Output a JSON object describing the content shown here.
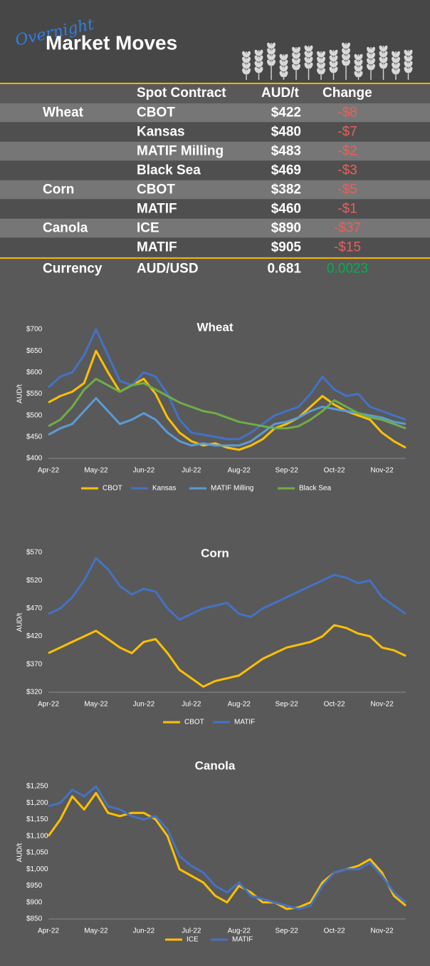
{
  "header": {
    "overlay": "Overnight",
    "title": "Market Moves"
  },
  "table": {
    "columns": [
      "Spot Contract",
      "AUD/t",
      "Change"
    ],
    "groups": [
      {
        "name": "Wheat",
        "rows": [
          [
            "CBOT",
            "$422",
            "-$8"
          ],
          [
            "Kansas",
            "$480",
            "-$7"
          ],
          [
            "MATIF Milling",
            "$483",
            "-$2"
          ],
          [
            "Black Sea",
            "$469",
            "-$3"
          ]
        ]
      },
      {
        "name": "Corn",
        "rows": [
          [
            "CBOT",
            "$382",
            "-$5"
          ],
          [
            "MATIF",
            "$460",
            "-$1"
          ]
        ]
      },
      {
        "name": "Canola",
        "rows": [
          [
            "ICE",
            "$890",
            "-$37"
          ],
          [
            "MATIF",
            "$905",
            "-$15"
          ]
        ]
      },
      {
        "name": "Currency",
        "rows": [
          [
            "AUD/USD",
            "0.681",
            "0.0023"
          ]
        ]
      }
    ]
  },
  "chart_data": [
    {
      "type": "line",
      "title": "Wheat",
      "y_label": "AUD/t",
      "categories": [
        "Apr-22",
        null,
        null,
        null,
        "May-22",
        null,
        null,
        null,
        "Jun-22",
        null,
        null,
        null,
        "Jul-22",
        null,
        null,
        null,
        "Aug-22",
        null,
        null,
        null,
        "Sep-22",
        null,
        null,
        null,
        "Oct-22",
        null,
        null,
        null,
        "Nov-22",
        null,
        null
      ],
      "ylim": [
        400,
        700
      ],
      "yticks": [
        {
          "value": 400,
          "label": "$400"
        },
        {
          "value": 450,
          "label": "$450"
        },
        {
          "value": 500,
          "label": "$500"
        },
        {
          "value": 550,
          "label": "$550"
        },
        {
          "value": 600,
          "label": "$600"
        },
        {
          "value": 650,
          "label": "$650"
        },
        {
          "value": 700,
          "label": "$700"
        }
      ],
      "series": [
        {
          "name": "CBOT",
          "color": "#ffc000",
          "values": [
            530,
            545,
            555,
            575,
            650,
            600,
            555,
            570,
            585,
            550,
            495,
            460,
            440,
            430,
            435,
            425,
            420,
            430,
            445,
            470,
            480,
            495,
            520,
            545,
            525,
            510,
            500,
            490,
            460,
            440,
            425
          ]
        },
        {
          "name": "Kansas",
          "color": "#4472c4",
          "values": [
            565,
            590,
            600,
            640,
            700,
            640,
            580,
            570,
            600,
            590,
            550,
            490,
            460,
            455,
            450,
            445,
            445,
            460,
            480,
            500,
            510,
            520,
            550,
            590,
            560,
            545,
            550,
            520,
            510,
            500,
            490
          ]
        },
        {
          "name": "MATIF Milling",
          "color": "#5b9bd5",
          "values": [
            455,
            470,
            480,
            510,
            540,
            510,
            480,
            490,
            505,
            490,
            460,
            440,
            430,
            435,
            430,
            430,
            430,
            440,
            460,
            480,
            485,
            495,
            510,
            520,
            515,
            510,
            505,
            500,
            495,
            485,
            480
          ]
        },
        {
          "name": "Black Sea",
          "color": "#70ad47",
          "values": [
            475,
            490,
            520,
            560,
            585,
            570,
            555,
            570,
            575,
            560,
            545,
            530,
            520,
            510,
            505,
            495,
            485,
            480,
            475,
            470,
            470,
            475,
            490,
            510,
            535,
            520,
            505,
            495,
            490,
            480,
            470
          ]
        }
      ]
    },
    {
      "type": "line",
      "title": "Corn",
      "y_label": "AUD/t",
      "categories": [
        "Apr-22",
        null,
        null,
        null,
        "May-22",
        null,
        null,
        null,
        "Jun-22",
        null,
        null,
        null,
        "Jul-22",
        null,
        null,
        null,
        "Aug-22",
        null,
        null,
        null,
        "Sep-22",
        null,
        null,
        null,
        "Oct-22",
        null,
        null,
        null,
        "Nov-22",
        null,
        null
      ],
      "ylim": [
        320,
        570
      ],
      "yticks": [
        {
          "value": 320,
          "label": "$320"
        },
        {
          "value": 370,
          "label": "$370"
        },
        {
          "value": 420,
          "label": "$420"
        },
        {
          "value": 470,
          "label": "$470"
        },
        {
          "value": 520,
          "label": "$520"
        },
        {
          "value": 570,
          "label": "$570"
        }
      ],
      "series": [
        {
          "name": "CBOT",
          "color": "#ffc000",
          "values": [
            390,
            400,
            410,
            420,
            430,
            415,
            400,
            390,
            410,
            415,
            390,
            360,
            345,
            330,
            340,
            345,
            350,
            365,
            380,
            390,
            400,
            405,
            410,
            420,
            440,
            435,
            425,
            420,
            400,
            395,
            385
          ]
        },
        {
          "name": "MATIF",
          "color": "#4472c4",
          "values": [
            460,
            470,
            490,
            520,
            560,
            540,
            510,
            495,
            505,
            500,
            470,
            450,
            460,
            470,
            475,
            480,
            460,
            455,
            470,
            480,
            490,
            500,
            510,
            520,
            530,
            525,
            515,
            520,
            490,
            475,
            460
          ]
        }
      ]
    },
    {
      "type": "line",
      "title": "Canola",
      "y_label": "AUD/t",
      "categories": [
        "Apr-22",
        null,
        null,
        null,
        "May-22",
        null,
        null,
        null,
        "Jun-22",
        null,
        null,
        null,
        "Jul-22",
        null,
        null,
        null,
        "Aug-22",
        null,
        null,
        null,
        "Sep-22",
        null,
        null,
        null,
        "Oct-22",
        null,
        null,
        null,
        "Nov-22",
        null,
        null
      ],
      "ylim": [
        850,
        1250
      ],
      "yticks": [
        {
          "value": 850,
          "label": "$850"
        },
        {
          "value": 900,
          "label": "$900"
        },
        {
          "value": 950,
          "label": "$950"
        },
        {
          "value": 1000,
          "label": "$1,000"
        },
        {
          "value": 1050,
          "label": "$1,050"
        },
        {
          "value": 1100,
          "label": "$1,100"
        },
        {
          "value": 1150,
          "label": "$1,150"
        },
        {
          "value": 1200,
          "label": "$1,200"
        },
        {
          "value": 1250,
          "label": "$1,250"
        }
      ],
      "series": [
        {
          "name": "ICE",
          "color": "#ffc000",
          "values": [
            1100,
            1150,
            1220,
            1180,
            1230,
            1170,
            1160,
            1170,
            1170,
            1150,
            1100,
            1000,
            980,
            960,
            920,
            900,
            950,
            930,
            900,
            900,
            880,
            885,
            900,
            960,
            990,
            1000,
            1010,
            1030,
            990,
            920,
            890
          ]
        },
        {
          "name": "MATIF",
          "color": "#4472c4",
          "values": [
            1190,
            1200,
            1240,
            1220,
            1250,
            1190,
            1180,
            1160,
            1150,
            1160,
            1120,
            1040,
            1010,
            990,
            950,
            930,
            960,
            920,
            910,
            900,
            890,
            880,
            890,
            950,
            990,
            1000,
            1000,
            1020,
            980,
            930,
            900
          ]
        }
      ]
    }
  ]
}
